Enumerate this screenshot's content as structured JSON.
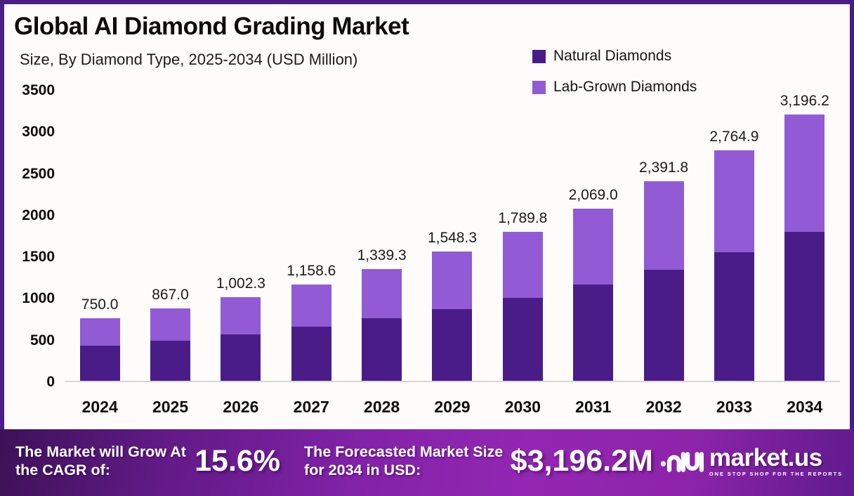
{
  "page": {
    "title": "Global AI Diamond Grading Market",
    "subtitle": "Size, By Diamond Type, 2025-2034 (USD Million)"
  },
  "colors": {
    "natural": "#4a1c88",
    "lab_grown": "#925ad5",
    "border": "#4a1d87",
    "background": "#fdfcfa",
    "axis_line": "#d8d6d4"
  },
  "legend": {
    "items": [
      {
        "label": "Natural Diamonds",
        "color": "#4a1c88"
      },
      {
        "label": "Lab-Grown Diamonds",
        "color": "#925ad5"
      }
    ]
  },
  "chart_data": {
    "type": "bar",
    "stacked": true,
    "title": "Global AI Diamond Grading Market",
    "subtitle": "Size, By Diamond Type, 2025-2034 (USD Million)",
    "xlabel": "",
    "ylabel": "USD Million",
    "ylim": [
      0,
      3500
    ],
    "yticks": [
      3500,
      3000,
      2500,
      2000,
      1500,
      1000,
      500,
      0
    ],
    "grid": false,
    "legend_position": "top-right",
    "categories": [
      "2024",
      "2025",
      "2026",
      "2027",
      "2028",
      "2029",
      "2030",
      "2031",
      "2032",
      "2033",
      "2034"
    ],
    "totals": [
      750.0,
      867.0,
      1002.3,
      1158.6,
      1339.3,
      1548.3,
      1789.8,
      2069.0,
      2391.8,
      2764.9,
      3196.2
    ],
    "total_labels": [
      "750.0",
      "867.0",
      "1,002.3",
      "1,158.6",
      "1,339.3",
      "1,548.3",
      "1,789.8",
      "2,069.0",
      "2,391.8",
      "2,764.9",
      "3,196.2"
    ],
    "series": [
      {
        "name": "Natural Diamonds",
        "color": "#4a1c88",
        "values": [
          418,
          484,
          559,
          647,
          747,
          864,
          999,
          1155,
          1335,
          1543,
          1784
        ]
      },
      {
        "name": "Lab-Grown Diamonds",
        "color": "#925ad5",
        "values": [
          332,
          383,
          443.3,
          511.6,
          592.3,
          684.3,
          790.8,
          914,
          1056.8,
          1221.9,
          1412.2
        ]
      }
    ]
  },
  "footer": {
    "cagr_label": "The Market will Grow At the CAGR of:",
    "cagr_value": "15.6%",
    "forecast_label": "The Forecasted Market Size for 2034 in USD:",
    "forecast_value": "$3,196.2M",
    "brand_name": "market.us",
    "brand_tagline": "ONE STOP SHOP FOR THE REPORTS"
  }
}
